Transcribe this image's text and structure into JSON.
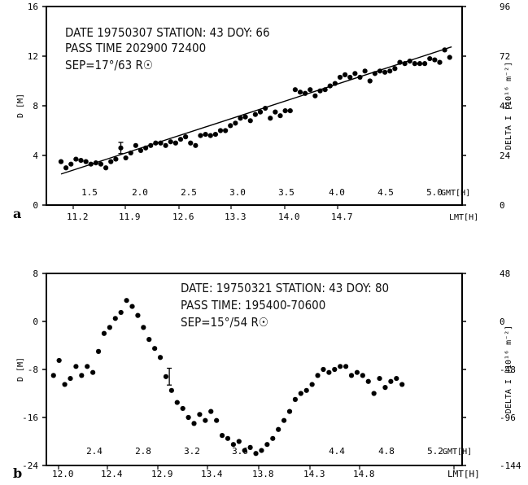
{
  "chart_data": [
    {
      "type": "scatter",
      "panel_label": "a",
      "annotation": [
        "DATE 19750307 STATION: 43   DOY: 66",
        "PASS TIME 202900 72400",
        "SEP=17°/63 R☉"
      ],
      "ylabel_left": "D [M]",
      "ylabel_right": "DELTA I [10¹⁶ m⁻²]",
      "xlabel_bottom": "LMT[H]",
      "xlabel_top": "GMT[H]",
      "ylim": [
        0,
        16
      ],
      "y_ticks": [
        "0",
        "4",
        "8",
        "12",
        "16"
      ],
      "y2_ticks": [
        "0",
        "24",
        "48",
        "72",
        "96"
      ],
      "lmt_range": [
        11.2,
        15.2
      ],
      "lmt_ticks": [
        "11.2",
        "11.9",
        "12.6",
        "13.3",
        "14.0",
        "14.7"
      ],
      "gmt_ticks": [
        "1.5",
        "2.0",
        "2.5",
        "3.0",
        "3.5",
        "4.0",
        "4.5",
        "5.0"
      ],
      "gmt_offset": -9.7,
      "fit_line": [
        [
          11.2,
          2.5
        ],
        [
          15.12,
          12.75
        ]
      ],
      "error_bar": {
        "x": 11.8,
        "y": 4.6,
        "err": 0.45
      },
      "series": [
        {
          "x": [
            11.2,
            11.25,
            11.3,
            11.35,
            11.4,
            11.45,
            11.5,
            11.55,
            11.6,
            11.65,
            11.7,
            11.75,
            11.8,
            11.85,
            11.9,
            11.95,
            12.0,
            12.05,
            12.1,
            12.15,
            12.2,
            12.25,
            12.3,
            12.35,
            12.4,
            12.45,
            12.5,
            12.55,
            12.6,
            12.65,
            12.7,
            12.75,
            12.8,
            12.85,
            12.9,
            12.95,
            13.0,
            13.05,
            13.1,
            13.15,
            13.2,
            13.25,
            13.3,
            13.35,
            13.4,
            13.45,
            13.5,
            13.55,
            13.6,
            13.65,
            13.7,
            13.75,
            13.8,
            13.85,
            13.9,
            13.95,
            14.0,
            14.05,
            14.1,
            14.15,
            14.2,
            14.25,
            14.3,
            14.35,
            14.4,
            14.45,
            14.5,
            14.55,
            14.6,
            14.65,
            14.7,
            14.75,
            14.8,
            14.85,
            14.9,
            14.95,
            15.0,
            15.05,
            15.1
          ],
          "y": [
            3.5,
            3.0,
            3.3,
            3.7,
            3.6,
            3.5,
            3.3,
            3.4,
            3.3,
            3.0,
            3.5,
            3.7,
            4.6,
            3.8,
            4.2,
            4.8,
            4.4,
            4.6,
            4.8,
            5.0,
            5.0,
            4.8,
            5.1,
            5.0,
            5.3,
            5.5,
            5.0,
            4.8,
            5.6,
            5.7,
            5.6,
            5.7,
            6.0,
            6.0,
            6.4,
            6.6,
            7.0,
            7.1,
            6.8,
            7.3,
            7.5,
            7.8,
            7.0,
            7.5,
            7.2,
            7.6,
            7.6,
            9.3,
            9.1,
            9.0,
            9.3,
            8.8,
            9.2,
            9.3,
            9.6,
            9.8,
            10.3,
            10.5,
            10.3,
            10.6,
            10.3,
            10.8,
            10.0,
            10.6,
            10.8,
            10.7,
            10.8,
            11.0,
            11.5,
            11.4,
            11.6,
            11.4,
            11.4,
            11.4,
            11.8,
            11.7,
            11.5,
            12.5,
            11.9
          ]
        }
      ]
    },
    {
      "type": "scatter",
      "panel_label": "b",
      "annotation": [
        "DATE: 19750321 STATION: 43 DOY: 80",
        "PASS TIME: 195400-70600",
        "SEP=15°/54 R☉"
      ],
      "ylabel_left": "D [M]",
      "ylabel_right": "DELTA I [10¹⁶ m⁻²]",
      "xlabel_bottom": "LMT[H]",
      "xlabel_top": "GMT[H]",
      "ylim": [
        -24,
        8
      ],
      "y_ticks": [
        "-24",
        "-16",
        "-8",
        "0",
        "8"
      ],
      "y2_ticks": [
        "-144",
        "-96",
        "-48",
        "0",
        "48"
      ],
      "lmt_range": [
        12.0,
        15.35
      ],
      "lmt_ticks": [
        "12.0",
        "12.4",
        "12.9",
        "13.4",
        "13.8",
        "14.3",
        "14.8",
        "LMT[H]"
      ],
      "gmt_ticks": [
        "2.4",
        "2.8",
        "3.2",
        "3.6",
        "4.4",
        "4.8",
        "5.2"
      ],
      "gmt_offset": -9.8,
      "error_bar": {
        "x": 13.05,
        "y": -9.2,
        "err": 1.4
      },
      "series": [
        {
          "x": [
            12.02,
            12.07,
            12.12,
            12.17,
            12.22,
            12.27,
            12.32,
            12.37,
            12.42,
            12.47,
            12.52,
            12.57,
            12.62,
            12.67,
            12.72,
            12.77,
            12.82,
            12.87,
            12.92,
            12.97,
            13.02,
            13.07,
            13.12,
            13.17,
            13.22,
            13.27,
            13.32,
            13.37,
            13.42,
            13.47,
            13.52,
            13.57,
            13.62,
            13.67,
            13.72,
            13.77,
            13.82,
            13.87,
            13.92,
            13.97,
            14.02,
            14.07,
            14.12,
            14.17,
            14.22,
            14.27,
            14.32,
            14.37,
            14.42,
            14.47,
            14.52,
            14.57,
            14.62,
            14.67,
            14.72,
            14.77,
            14.82,
            14.87,
            14.92,
            14.97,
            15.02,
            15.07,
            15.12
          ],
          "y": [
            -9.0,
            -6.5,
            -10.5,
            -9.5,
            -7.5,
            -9.0,
            -7.5,
            -8.5,
            -5.0,
            -2.0,
            -1.0,
            0.5,
            1.5,
            3.5,
            2.5,
            1.0,
            -1.0,
            -3.0,
            -4.5,
            -6.0,
            -9.2,
            -11.5,
            -13.5,
            -14.5,
            -16.0,
            -17.0,
            -15.5,
            -16.5,
            -15.0,
            -16.5,
            -19.0,
            -19.5,
            -20.5,
            -20.0,
            -21.5,
            -21.0,
            -22.0,
            -21.5,
            -20.5,
            -19.5,
            -18.0,
            -16.5,
            -15.0,
            -13.0,
            -12.0,
            -11.5,
            -10.5,
            -9.0,
            -8.0,
            -8.5,
            -8.0,
            -7.5,
            -7.5,
            -9.0,
            -8.5,
            -9.0,
            -10.0,
            -12.0,
            -9.5,
            -11.0,
            -10.0,
            -9.5,
            -10.5
          ]
        }
      ]
    }
  ]
}
